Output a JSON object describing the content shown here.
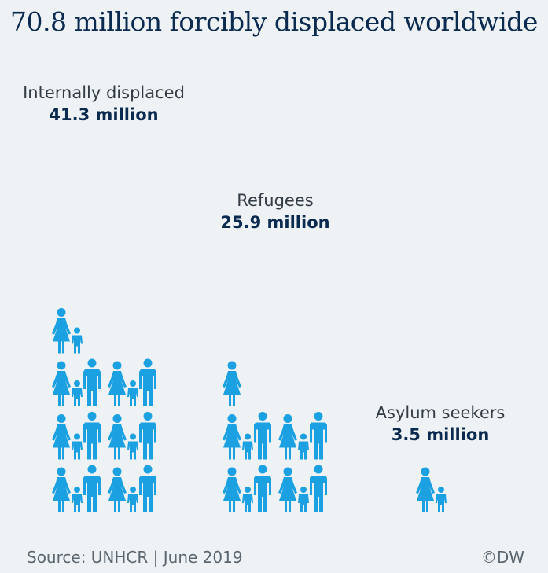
{
  "title": "70.8 million forcibly displaced worldwide",
  "footer": {
    "source": "Source: UNHCR | June 2019",
    "credit": "©DW"
  },
  "colors": {
    "icon": "#1ba1e2",
    "title": "#0a2a4f",
    "background": "#eef2f5"
  },
  "icon_names": [
    "woman-icon",
    "child-icon",
    "man-icon"
  ],
  "chart_data": {
    "type": "bar",
    "encoding": "pictogram (stacked family icons)",
    "title": "70.8 million forcibly displaced worldwide",
    "categories": [
      "Internally displaced",
      "Refugees",
      "Asylum seekers"
    ],
    "values": [
      41.3,
      25.9,
      3.5
    ],
    "value_labels": [
      "41.3 million",
      "25.9 million",
      "3.5 million"
    ],
    "unit": "million",
    "icons_per_category": [
      20,
      13,
      2
    ]
  }
}
